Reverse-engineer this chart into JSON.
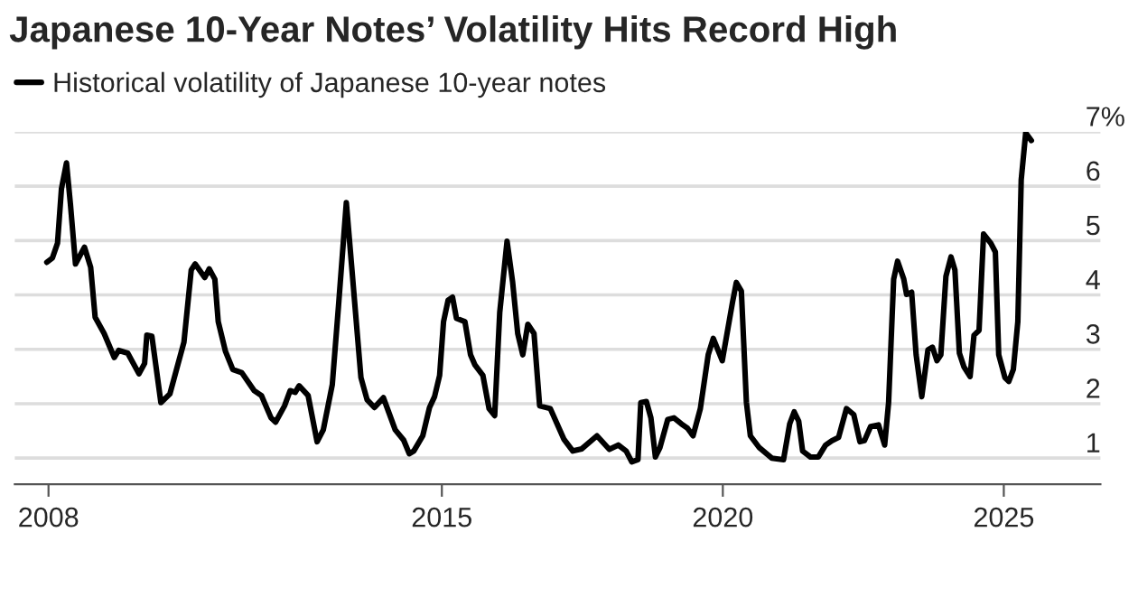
{
  "chart_data": {
    "type": "line",
    "title": "Japanese 10-Year Notes’ Volatility Hits Record High",
    "xlim": [
      2007.4,
      2026.72
    ],
    "ylim": [
      0.52,
      7.0
    ],
    "xticks": [
      2008,
      2015,
      2020,
      2025
    ],
    "yticks": [
      1,
      2,
      3,
      4,
      5,
      6,
      {
        "value": 7,
        "label": "7%"
      }
    ],
    "grid": "y",
    "legend": "top left",
    "series": [
      {
        "name": "Historical volatility of Japanese 10-year notes",
        "color": "#000000",
        "x": [
          2007.97,
          2008.07,
          2008.16,
          2008.23,
          2008.32,
          2008.39,
          2008.48,
          2008.64,
          2008.75,
          2008.83,
          2008.99,
          2009.17,
          2009.25,
          2009.41,
          2009.61,
          2009.71,
          2009.75,
          2009.84,
          2010.0,
          2010.16,
          2010.41,
          2010.54,
          2010.61,
          2010.78,
          2010.86,
          2010.96,
          2011.02,
          2011.15,
          2011.28,
          2011.44,
          2011.66,
          2011.79,
          2011.96,
          2012.04,
          2012.2,
          2012.3,
          2012.39,
          2012.46,
          2012.62,
          2012.78,
          2012.89,
          2013.05,
          2013.16,
          2013.3,
          2013.4,
          2013.56,
          2013.67,
          2013.8,
          2013.96,
          2014.17,
          2014.32,
          2014.42,
          2014.5,
          2014.66,
          2014.78,
          2014.87,
          2014.96,
          2015.03,
          2015.11,
          2015.19,
          2015.26,
          2015.41,
          2015.51,
          2015.59,
          2015.73,
          2015.84,
          2015.94,
          2016.03,
          2016.16,
          2016.26,
          2016.35,
          2016.44,
          2016.53,
          2016.64,
          2016.74,
          2016.93,
          2017.17,
          2017.33,
          2017.49,
          2017.76,
          2017.98,
          2018.14,
          2018.28,
          2018.38,
          2018.49,
          2018.54,
          2018.64,
          2018.72,
          2018.8,
          2018.88,
          2019.02,
          2019.13,
          2019.26,
          2019.37,
          2019.47,
          2019.6,
          2019.74,
          2019.83,
          2019.99,
          2020.17,
          2020.24,
          2020.33,
          2020.42,
          2020.49,
          2020.65,
          2020.87,
          2021.08,
          2021.19,
          2021.27,
          2021.35,
          2021.42,
          2021.56,
          2021.7,
          2021.83,
          2021.94,
          2022.06,
          2022.2,
          2022.33,
          2022.44,
          2022.52,
          2022.63,
          2022.77,
          2022.88,
          2022.95,
          2023.04,
          2023.11,
          2023.22,
          2023.27,
          2023.36,
          2023.44,
          2023.54,
          2023.65,
          2023.73,
          2023.81,
          2023.88,
          2023.97,
          2024.06,
          2024.13,
          2024.21,
          2024.29,
          2024.4,
          2024.47,
          2024.56,
          2024.64,
          2024.77,
          2024.85,
          2024.91,
          2025.02,
          2025.09,
          2025.17,
          2025.25,
          2025.31,
          2025.39,
          2025.49
        ],
        "values": [
          4.6,
          4.68,
          4.95,
          5.95,
          6.43,
          5.67,
          4.57,
          4.88,
          4.51,
          3.59,
          3.29,
          2.85,
          2.98,
          2.93,
          2.55,
          2.74,
          3.26,
          3.24,
          2.02,
          2.18,
          3.13,
          4.46,
          4.57,
          4.32,
          4.48,
          4.29,
          3.51,
          2.96,
          2.63,
          2.57,
          2.24,
          2.15,
          1.74,
          1.66,
          1.96,
          2.24,
          2.21,
          2.33,
          2.15,
          1.3,
          1.52,
          2.35,
          3.79,
          5.7,
          4.46,
          2.48,
          2.07,
          1.93,
          2.11,
          1.52,
          1.33,
          1.08,
          1.13,
          1.41,
          1.93,
          2.13,
          2.52,
          3.51,
          3.9,
          3.96,
          3.57,
          3.51,
          2.9,
          2.71,
          2.52,
          1.91,
          1.78,
          3.68,
          4.99,
          4.23,
          3.29,
          2.9,
          3.46,
          3.29,
          1.96,
          1.91,
          1.35,
          1.13,
          1.17,
          1.41,
          1.16,
          1.24,
          1.13,
          0.93,
          0.97,
          2.02,
          2.04,
          1.74,
          1.02,
          1.19,
          1.71,
          1.74,
          1.63,
          1.55,
          1.41,
          1.91,
          2.9,
          3.2,
          2.79,
          3.85,
          4.23,
          4.07,
          2.02,
          1.41,
          1.19,
          1.0,
          0.97,
          1.63,
          1.85,
          1.68,
          1.13,
          1.02,
          1.02,
          1.24,
          1.32,
          1.38,
          1.91,
          1.8,
          1.3,
          1.32,
          1.58,
          1.61,
          1.24,
          2.02,
          4.29,
          4.62,
          4.29,
          4.01,
          4.05,
          2.9,
          2.13,
          2.99,
          3.04,
          2.79,
          2.9,
          4.34,
          4.7,
          4.46,
          2.93,
          2.68,
          2.5,
          3.26,
          3.35,
          5.12,
          4.95,
          4.79,
          2.9,
          2.48,
          2.41,
          2.63,
          3.51,
          6.12,
          6.98,
          6.84
        ]
      }
    ]
  }
}
